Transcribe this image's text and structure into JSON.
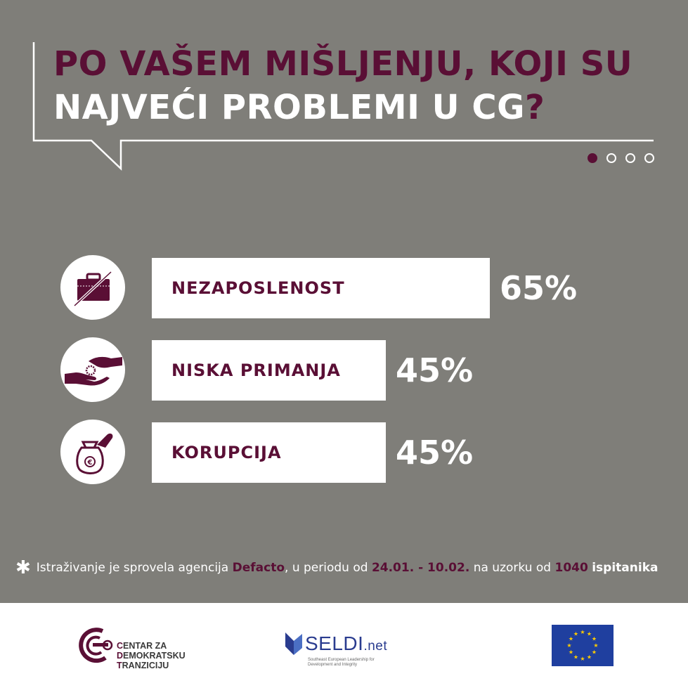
{
  "header": {
    "title_line1": "PO VAŠEM MIŠLJENJU, KOJI SU",
    "title_line2": "NAJVEĆI PROBLEMI U CG",
    "title_qmark": "?"
  },
  "pagination": {
    "total": 4,
    "active": 1
  },
  "colors": {
    "background": "#7f7e79",
    "accent": "#5a0f35",
    "bar": "#ffffff",
    "eu_blue": "#1f3f9f",
    "eu_star": "#ffcc00"
  },
  "chart_data": {
    "type": "bar",
    "orientation": "horizontal",
    "categories": [
      "NEZAPOSLENOST",
      "NISKA PRIMANJA",
      "KORUPCIJA"
    ],
    "values": [
      65,
      45,
      45
    ],
    "value_labels": [
      "65%",
      "45%",
      "45%"
    ],
    "icons": [
      "briefcase-crossed-icon",
      "hand-giving-coin-icon",
      "money-bag-euro-icon"
    ],
    "title": "PO VAŠEM MIŠLJENJU, KOJI SU NAJVEĆI PROBLEMI U CG?",
    "unit": "%",
    "grid": false,
    "legend": "none"
  },
  "footnote": {
    "star": "✱",
    "t1": "Istraživanje je sprovela agencija ",
    "agency": "Defacto",
    "t2": ", u periodu od ",
    "period": "24.01. - 10.02.",
    "t3": " na uzorku od ",
    "sample": "1040",
    "t4": " ",
    "respondents": "ispitanika"
  },
  "footer": {
    "cdt_line1_lead": "C",
    "cdt_line1_rest": "ENTAR ZA",
    "cdt_line2_lead": "D",
    "cdt_line2_rest": "EMOKRATSKU",
    "cdt_line3_lead": "T",
    "cdt_line3_rest": "RANZICIJU",
    "seldi_name": "SELDI",
    "seldi_net": ".net",
    "seldi_sub": "Southeast European Leadership for Development and Integrity",
    "eu_flag_icon": "eu-flag-icon"
  }
}
